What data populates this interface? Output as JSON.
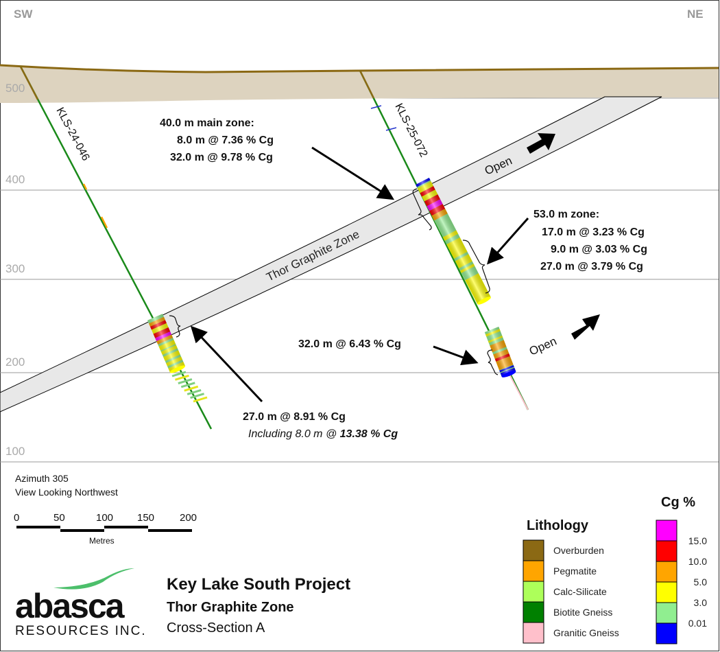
{
  "directions": {
    "left": "SW",
    "right": "NE"
  },
  "elevation_labels": [
    "500",
    "400",
    "300",
    "200",
    "100"
  ],
  "holes": [
    {
      "name": "KLS-24-046"
    },
    {
      "name": "KLS-25-072"
    }
  ],
  "zone_label": "Thor Graphite Zone",
  "open_label": "Open",
  "annotations": {
    "main_zone": {
      "title": "40.0 m main zone:",
      "lines": [
        "8.0 m @ 7.36 % Cg",
        "32.0 m @ 9.78 % Cg"
      ]
    },
    "zone_53": {
      "title": "53.0 m zone:",
      "lines": [
        "17.0 m @ 3.23 % Cg",
        "9.0 m @ 3.03 % Cg",
        "27.0 m @ 3.79 % Cg"
      ]
    },
    "lower_072": "32.0 m @ 6.43 % Cg",
    "hole_046": {
      "main": "27.0 m @ 8.91 % Cg",
      "including_prefix": "Including 8.0 m @ ",
      "including_value": "13.38 % Cg"
    }
  },
  "view": {
    "azimuth": "Azimuth 305",
    "looking": "View Looking Northwest"
  },
  "scale_bar": {
    "ticks": [
      "0",
      "50",
      "100",
      "150",
      "200"
    ],
    "unit": "Metres"
  },
  "logo": {
    "name": "abasca",
    "sub": "RESOURCES INC."
  },
  "title": {
    "project": "Key Lake South Project",
    "zone": "Thor Graphite Zone",
    "section": "Cross-Section A"
  },
  "lithology_legend": {
    "title": "Lithology",
    "items": [
      {
        "label": "Overburden",
        "color": "#8B6914"
      },
      {
        "label": "Pegmatite",
        "color": "#FFA500"
      },
      {
        "label": "Calc-Silicate",
        "color": "#ADFF5A"
      },
      {
        "label": "Biotite Gneiss",
        "color": "#008000"
      },
      {
        "label": "Granitic Gneiss",
        "color": "#FFC0CB"
      }
    ]
  },
  "grade_legend": {
    "title": "Cg %",
    "colors": [
      "#FF00FF",
      "#FF0000",
      "#FFA500",
      "#FFFF00",
      "#90EE90",
      "#0000FF"
    ],
    "thresholds": [
      "15.0",
      "10.0",
      "5.0",
      "3.0",
      "0.01"
    ]
  }
}
